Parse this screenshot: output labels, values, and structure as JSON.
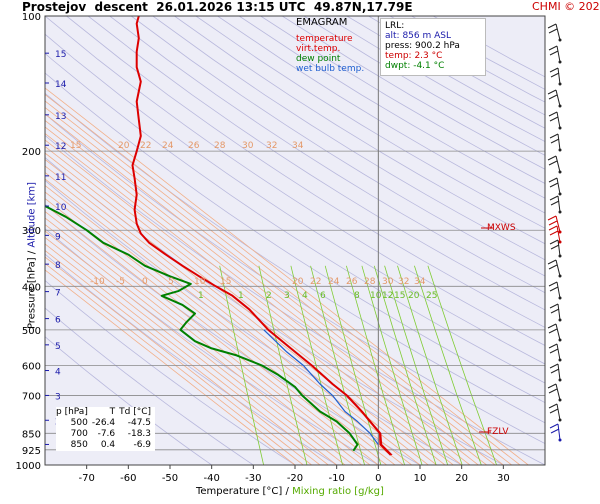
{
  "header": {
    "station": "Prostejov",
    "mode": "descent",
    "datetime": "26.01.2026 13:15 UTC",
    "coords": "49.87N,17.79E",
    "credit": "CHMI © 2026"
  },
  "legend": {
    "title": "EMAGRAM",
    "items": [
      {
        "label": "temperature",
        "color": "#dd0000"
      },
      {
        "label": "virt.temp.",
        "color": "#dd0000"
      },
      {
        "label": "dew point",
        "color": "#008000"
      },
      {
        "label": "wet bulb temp.",
        "color": "#1f5fd0"
      }
    ]
  },
  "lrl": {
    "title": "LRL:",
    "alt": "alt: 856 m ASL",
    "press": "press: 900.2 hPa",
    "temp": "temp: 2.3 °C",
    "dwpt": "dwpt: -4.1 °C"
  },
  "markers": {
    "mxws": "MXWS",
    "fzlv": "FZLV"
  },
  "table": {
    "headers": [
      "p [hPa]",
      "T",
      "Td [°C]"
    ],
    "rows": [
      [
        "500",
        "-26.4",
        "-47.5"
      ],
      [
        "700",
        "-7.6",
        "-18.3"
      ],
      [
        "850",
        "0.4",
        "-6.9"
      ]
    ]
  },
  "axis_labels": {
    "x_temp": "Temperature [°C]",
    "x_sep": "/",
    "x_mix": "Mixing ratio [g/kg]",
    "y_pressure": "Pressure [hPa]",
    "y_sep": "/",
    "y_alt": "Altitude [km]"
  },
  "colors": {
    "temperature": "#dd0000",
    "dewpoint": "#008000",
    "wetbulb": "#1f5fd0",
    "dry_adiabat": "#b9b9dd",
    "moist_adiabat": "#f2b08a",
    "mixing_ratio": "#7fcc33",
    "plot_bg": "#ededf7"
  },
  "chart_data": {
    "type": "line",
    "x_axis": {
      "range": [
        -80,
        40
      ],
      "ticks": [
        -70,
        -60,
        -50,
        -40,
        -30,
        -20,
        -10,
        0,
        10,
        20,
        30
      ]
    },
    "y_axis": {
      "scale": "log",
      "range": [
        1000,
        100
      ],
      "ticks": [
        100,
        200,
        300,
        400,
        500,
        600,
        700,
        850,
        925,
        1000
      ]
    },
    "altitude_ticks_km": [
      1,
      2,
      3,
      4,
      5,
      6,
      7,
      8,
      9,
      10,
      11,
      12,
      13,
      14,
      15
    ],
    "mixing_ratio_labels": [
      "1",
      "1",
      "2",
      "3",
      "4",
      "6",
      "8",
      "10",
      "12",
      "15",
      "20",
      "25"
    ],
    "moist_adiabat_labels_lower": [
      "-10",
      "-5",
      "0",
      "5",
      "10",
      "15",
      "20",
      "22",
      "24",
      "26",
      "28",
      "30",
      "32",
      "34"
    ],
    "moist_adiabat_labels_upper": [
      "15",
      "20",
      "22",
      "24",
      "26",
      "28",
      "30",
      "32",
      "34"
    ],
    "series": [
      {
        "name": "temperature",
        "points": [
          [
            3,
            950
          ],
          [
            0.5,
            900
          ],
          [
            0.4,
            850
          ],
          [
            -2,
            800
          ],
          [
            -4,
            760
          ],
          [
            -7.6,
            700
          ],
          [
            -11,
            660
          ],
          [
            -16,
            600
          ],
          [
            -21,
            550
          ],
          [
            -26.4,
            500
          ],
          [
            -31,
            450
          ],
          [
            -35,
            420
          ],
          [
            -39,
            400
          ],
          [
            -43,
            380
          ],
          [
            -47,
            360
          ],
          [
            -51,
            340
          ],
          [
            -55,
            320
          ],
          [
            -57,
            305
          ],
          [
            -58,
            290
          ],
          [
            -58.5,
            270
          ],
          [
            -58,
            250
          ],
          [
            -58.5,
            230
          ],
          [
            -59,
            215
          ],
          [
            -58,
            200
          ],
          [
            -57,
            185
          ],
          [
            -57.5,
            170
          ],
          [
            -58,
            155
          ],
          [
            -57,
            140
          ],
          [
            -58,
            130
          ],
          [
            -58,
            120
          ],
          [
            -57.5,
            112
          ],
          [
            -58,
            104
          ],
          [
            -57.5,
            100
          ]
        ]
      },
      {
        "name": "virt.temp.",
        "points": [
          [
            3.3,
            950
          ],
          [
            0.8,
            900
          ],
          [
            0.6,
            850
          ],
          [
            -1.8,
            800
          ],
          [
            -3.8,
            760
          ],
          [
            -7.4,
            700
          ],
          [
            -10.9,
            660
          ],
          [
            -15.9,
            600
          ],
          [
            -21,
            550
          ],
          [
            -26.4,
            500
          ]
        ]
      },
      {
        "name": "dew point",
        "points": [
          [
            -6,
            930
          ],
          [
            -5,
            900
          ],
          [
            -6.9,
            850
          ],
          [
            -10,
            800
          ],
          [
            -14,
            760
          ],
          [
            -18.3,
            700
          ],
          [
            -20,
            670
          ],
          [
            -24,
            630
          ],
          [
            -28,
            600
          ],
          [
            -34,
            570
          ],
          [
            -40,
            550
          ],
          [
            -44,
            530
          ],
          [
            -47.5,
            500
          ],
          [
            -46,
            480
          ],
          [
            -44,
            460
          ],
          [
            -47,
            440
          ],
          [
            -52,
            420
          ],
          [
            -48,
            410
          ],
          [
            -45,
            395
          ],
          [
            -50,
            380
          ],
          [
            -56,
            360
          ],
          [
            -60,
            340
          ],
          [
            -66,
            320
          ],
          [
            -70,
            300
          ],
          [
            -75,
            280
          ],
          [
            -80,
            265
          ],
          [
            -85,
            250
          ],
          [
            -88,
            240
          ]
        ]
      },
      {
        "name": "wet bulb temp.",
        "points": [
          [
            0,
            900
          ],
          [
            -2,
            850
          ],
          [
            -5,
            800
          ],
          [
            -8,
            760
          ],
          [
            -11,
            700
          ],
          [
            -14,
            660
          ],
          [
            -18,
            600
          ],
          [
            -22,
            560
          ],
          [
            -27.5,
            500
          ]
        ]
      }
    ]
  }
}
